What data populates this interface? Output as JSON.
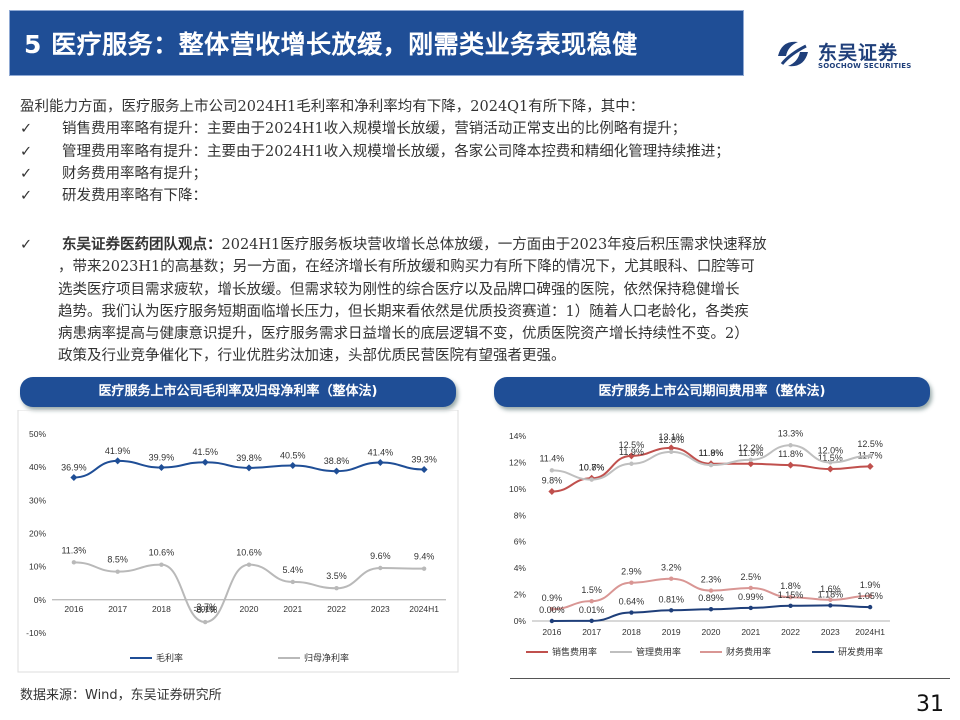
{
  "header": {
    "title": "5 医疗服务：整体营收增长放缓，刚需类业务表现稳健"
  },
  "logo": {
    "name_cn": "东吴证券",
    "name_en": "SOOCHOW SECURITIES"
  },
  "intro": "盈利能力方面，医疗服务上市公司2024H1毛利率和净利率均有下降，2024Q1有所下降，其中：",
  "bullets": [
    "销售费用率略有提升：主要由于2024H1收入规模增长放缓，营销活动正常支出的比例略有提升；",
    "管理费用率略有提升：主要由于2024H1收入规模增长放缓，各家公司降本控费和精细化管理持续推进；",
    "财务费用率略有提升；",
    "研发费用率略有下降："
  ],
  "check_symbol": "✓",
  "view": {
    "lead": "东吴证券医药团队观点：",
    "lines": [
      "2024H1医疗服务板块营收增长总体放缓，一方面由于2023年疫后积压需求快速释放",
      "，带来2023H1的高基数；另一方面，在经济增长有所放缓和购买力有所下降的情况下，尤其眼科、口腔等可",
      "选类医疗项目需求疲软，增长放缓。但需求较为刚性的综合医疗以及品牌口碑强的医院，依然保持稳健增长",
      "趋势。我们认为医疗服务短期面临增长压力，但长期来看依然是优质投资赛道：1）随着人口老龄化，各类疾",
      "病患病率提高与健康意识提升，医疗服务需求日益增长的底层逻辑不变，优质医院资产增长持续性不变。2）",
      "政策及行业竞争催化下，行业优胜劣汰加速，头部优质民营医院有望强者更强。"
    ]
  },
  "left_chart_title": "医疗服务上市公司毛利率及归母净利率（整体法)",
  "right_chart_title": "医疗服务上市公司期间费用率（整体法)",
  "chart_data": [
    {
      "type": "line",
      "categories": [
        "2016",
        "2017",
        "2018",
        "2019",
        "2020",
        "2021",
        "2022",
        "2023",
        "2024H1"
      ],
      "ylim": [
        -10,
        50
      ],
      "yticks": [
        "50%",
        "40%",
        "30%",
        "20%",
        "10%",
        "0%",
        "-10%"
      ],
      "series": [
        {
          "name": "毛利率",
          "color": "#1f4e96",
          "values": [
            36.9,
            41.9,
            39.9,
            41.5,
            39.8,
            40.5,
            38.8,
            41.4,
            39.3
          ],
          "labels": [
            "36.9%",
            "41.9%",
            "39.9%",
            "41.5%",
            "39.8%",
            "40.5%",
            "38.8%",
            "41.4%",
            "39.3%"
          ]
        },
        {
          "name": "归母净利率",
          "color": "#b9b9b9",
          "values": [
            11.3,
            8.5,
            10.6,
            -6.7,
            10.6,
            5.4,
            3.5,
            9.6,
            9.4
          ],
          "labels": [
            "11.3%",
            "8.5%",
            "10.6%",
            "-6.7%",
            "10.6%",
            "5.4%",
            "3.5%",
            "9.6%",
            "9.4%"
          ]
        }
      ],
      "extra_label": "-3.7%"
    },
    {
      "type": "line",
      "categories": [
        "2016",
        "2017",
        "2018",
        "2019",
        "2020",
        "2021",
        "2022",
        "2023",
        "2024H1"
      ],
      "ylim": [
        0,
        14
      ],
      "yticks": [
        "14%",
        "12%",
        "10%",
        "8%",
        "6%",
        "4%",
        "2%",
        "0%"
      ],
      "series": [
        {
          "name": "销售费用率",
          "color": "#c0504d",
          "values": [
            9.8,
            10.8,
            12.5,
            13.1,
            11.9,
            11.9,
            11.8,
            11.5,
            11.7
          ],
          "labels": [
            "9.8%",
            "10.8%",
            "12.5%",
            "13.1%",
            "11.9%",
            "11.9%",
            "11.8%",
            "11.5%",
            "11.7%"
          ]
        },
        {
          "name": "管理费用率",
          "color": "#bfbfbf",
          "values": [
            11.4,
            10.7,
            11.9,
            12.8,
            11.8,
            12.2,
            13.3,
            12.0,
            12.5
          ],
          "labels": [
            "11.4%",
            "10.7%",
            "11.9%",
            "12.8%",
            "11.8%",
            "12.2%",
            "13.3%",
            "12.0%",
            "12.5%"
          ]
        },
        {
          "name": "财务费用率",
          "color": "#d99694",
          "values": [
            0.9,
            1.5,
            2.9,
            3.2,
            2.3,
            2.5,
            1.8,
            1.6,
            1.9
          ],
          "labels": [
            "0.9%",
            "1.5%",
            "2.9%",
            "3.2%",
            "2.3%",
            "2.5%",
            "1.8%",
            "1.6%",
            "1.9%"
          ]
        },
        {
          "name": "研发费用率",
          "color": "#1f3f7a",
          "values": [
            0.0,
            0.01,
            0.64,
            0.81,
            0.89,
            0.99,
            1.15,
            1.18,
            1.05
          ],
          "labels": [
            "0.00%",
            "0.01%",
            "0.64%",
            "0.81%",
            "0.89%",
            "0.99%",
            "1.15%",
            "1.18%",
            "1.05%"
          ]
        }
      ]
    }
  ],
  "footer": {
    "source": "数据来源：Wind，东吴证券研究所",
    "page": "31"
  }
}
